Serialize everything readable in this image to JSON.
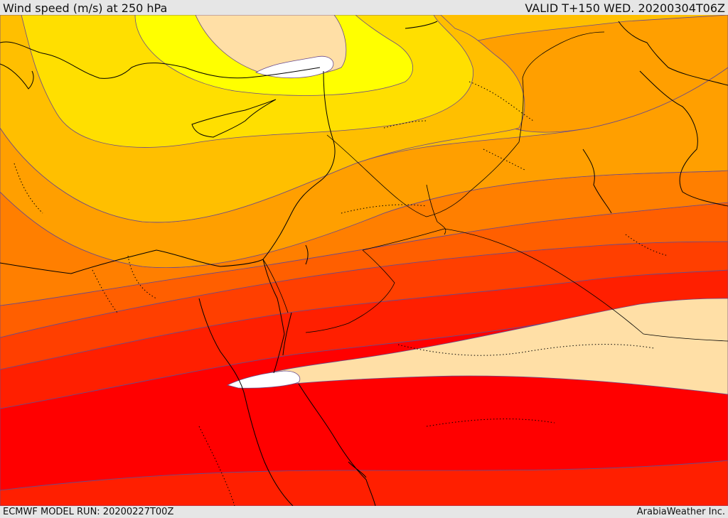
{
  "header": {
    "title": "Wind speed (m/s) at 250 hPa",
    "valid": "VALID T+150 WED. 20200304T06Z"
  },
  "footer": {
    "model_run": "ECMWF MODEL RUN: 20200227T00Z",
    "credit": "ArabiaWeather Inc."
  },
  "map": {
    "variable": "wind speed",
    "units": "m/s",
    "level": "250 hPa",
    "colors": {
      "band_0": "#ffffff",
      "band_1": "#ffdfa6",
      "band_2": "#ffff00",
      "band_3": "#ffdf00",
      "band_4": "#ffbf00",
      "band_5": "#ff9f00",
      "band_6": "#ff7f00",
      "band_7": "#ff5f00",
      "band_8": "#ff3f00",
      "band_9": "#ff1f00",
      "band_10": "#ff0000",
      "contour": "#6a4a8a",
      "coastline": "#000000"
    }
  }
}
